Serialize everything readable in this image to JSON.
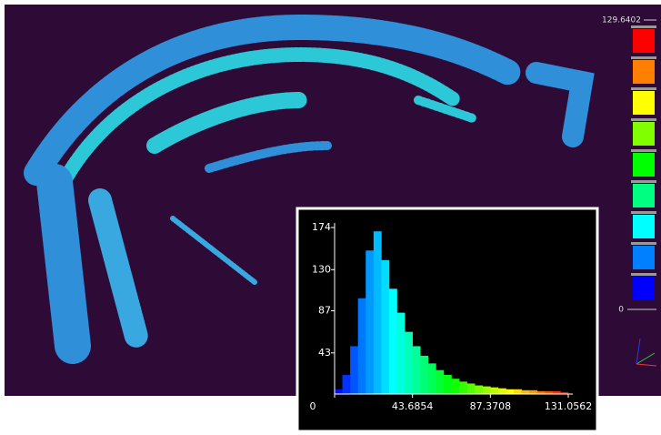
{
  "colorbar": {
    "max_label": "129.6402",
    "min_label": "0",
    "colors": [
      "#ff0000",
      "#ff8000",
      "#ffff00",
      "#80ff00",
      "#00ff00",
      "#00ff80",
      "#00ffff",
      "#0080ff",
      "#0000ff"
    ]
  },
  "histogram": {
    "type": "histogram",
    "bins": [
      0,
      4.36854,
      8.73708,
      13.10562,
      17.47416,
      21.8427,
      26.21124,
      30.57978,
      34.94832,
      39.31686,
      43.6854,
      48.05394,
      52.42248,
      56.79102,
      61.15956,
      65.5281,
      69.89664,
      74.26518,
      78.63372,
      83.00226,
      87.3708,
      91.73934,
      96.10788,
      100.47642,
      104.84496,
      109.2135,
      113.58204,
      117.95058,
      122.31912,
      126.68766,
      131.0562
    ],
    "counts": [
      5,
      20,
      50,
      100,
      150,
      170,
      140,
      110,
      85,
      65,
      50,
      40,
      32,
      25,
      20,
      16,
      13,
      11,
      9,
      8,
      7,
      6,
      5,
      5,
      4,
      4,
      3,
      3,
      3,
      2
    ],
    "xlim": [
      0,
      131.0562
    ],
    "xticks": [
      0,
      43.6854,
      87.3708,
      131.0562
    ],
    "ylim": [
      0,
      174
    ],
    "yticks": [
      43,
      87,
      130,
      174
    ]
  }
}
